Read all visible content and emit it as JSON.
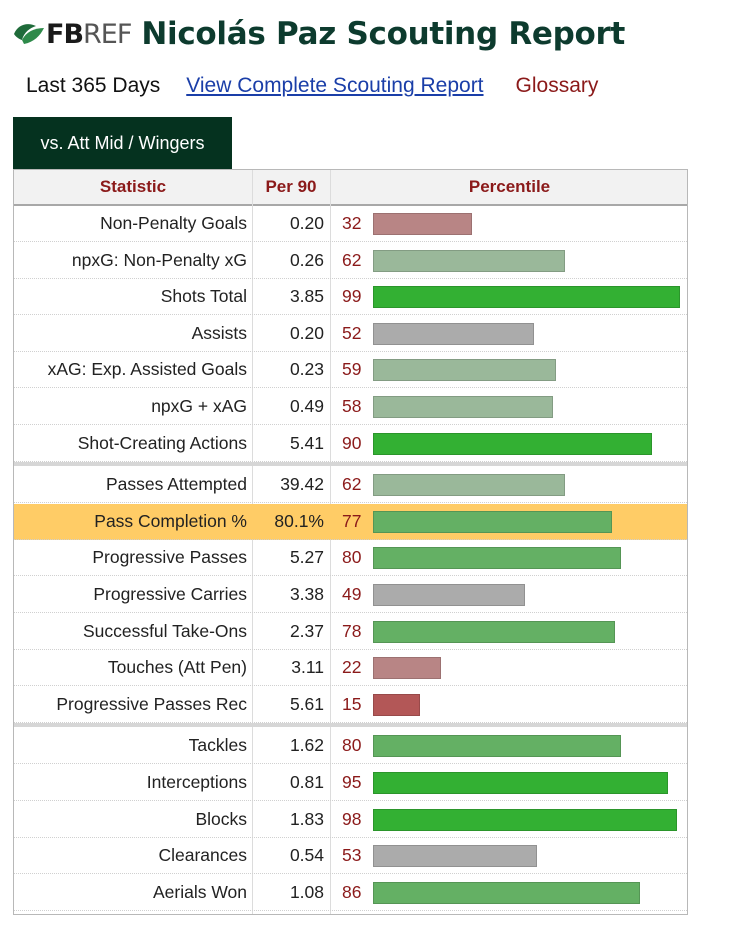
{
  "header": {
    "logo_fb": "FB",
    "logo_ref": "REF",
    "title": "Nicolás Paz Scouting Report"
  },
  "subnav": {
    "period": "Last 365 Days",
    "full_report_link": "View Complete Scouting Report",
    "glossary_link": "Glossary"
  },
  "tab": {
    "label": "vs. Att Mid / Wingers"
  },
  "table": {
    "columns": {
      "statistic": "Statistic",
      "per90": "Per 90",
      "percentile": "Percentile"
    },
    "groups": [
      [
        {
          "stat": "Non-Penalty Goals",
          "per90": "0.20",
          "percentile": 32
        },
        {
          "stat": "npxG: Non-Penalty xG",
          "per90": "0.26",
          "percentile": 62
        },
        {
          "stat": "Shots Total",
          "per90": "3.85",
          "percentile": 99
        },
        {
          "stat": "Assists",
          "per90": "0.20",
          "percentile": 52
        },
        {
          "stat": "xAG: Exp. Assisted Goals",
          "per90": "0.23",
          "percentile": 59
        },
        {
          "stat": "npxG + xAG",
          "per90": "0.49",
          "percentile": 58
        },
        {
          "stat": "Shot-Creating Actions",
          "per90": "5.41",
          "percentile": 90
        }
      ],
      [
        {
          "stat": "Passes Attempted",
          "per90": "39.42",
          "percentile": 62
        },
        {
          "stat": "Pass Completion %",
          "per90": "80.1%",
          "percentile": 77,
          "highlight": true
        },
        {
          "stat": "Progressive Passes",
          "per90": "5.27",
          "percentile": 80
        },
        {
          "stat": "Progressive Carries",
          "per90": "3.38",
          "percentile": 49
        },
        {
          "stat": "Successful Take-Ons",
          "per90": "2.37",
          "percentile": 78
        },
        {
          "stat": "Touches (Att Pen)",
          "per90": "3.11",
          "percentile": 22
        },
        {
          "stat": "Progressive Passes Rec",
          "per90": "5.61",
          "percentile": 15
        }
      ],
      [
        {
          "stat": "Tackles",
          "per90": "1.62",
          "percentile": 80
        },
        {
          "stat": "Interceptions",
          "per90": "0.81",
          "percentile": 95
        },
        {
          "stat": "Blocks",
          "per90": "1.83",
          "percentile": 98
        },
        {
          "stat": "Clearances",
          "per90": "0.54",
          "percentile": 53
        },
        {
          "stat": "Aerials Won",
          "per90": "1.08",
          "percentile": 86
        }
      ]
    ]
  },
  "colors": {
    "title": "#0d3b2e",
    "tab_bg": "#05321f",
    "header_text": "#8b1a1a",
    "highlight_row": "#ffcc66",
    "bar_elite": "#33b033",
    "bar_good": "#64b064",
    "bar_above": "#9ab89a",
    "bar_average": "#ababab",
    "bar_below": "#b88585",
    "bar_poor": "#b35757"
  }
}
